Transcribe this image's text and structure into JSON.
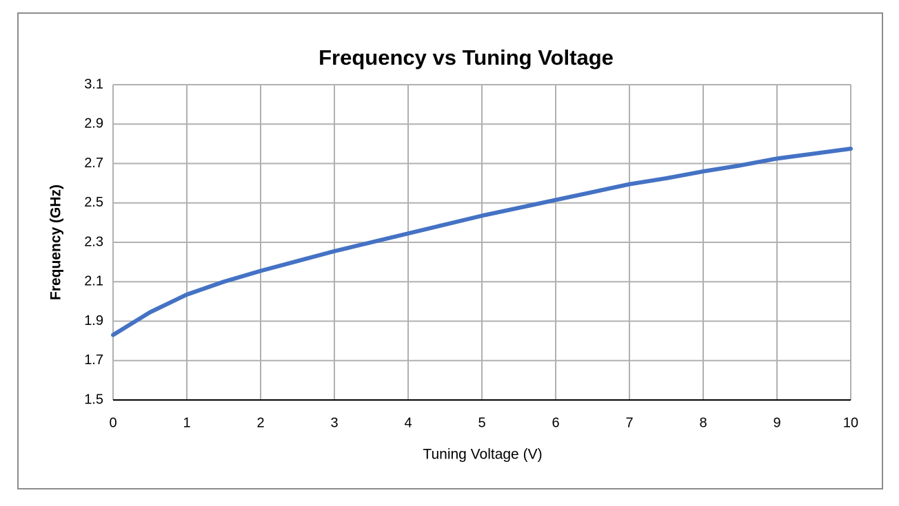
{
  "chart_data": {
    "type": "line",
    "title": "Frequency vs Tuning Voltage",
    "x_label": "Tuning Voltage (V)",
    "y_label": "Frequency (GHz)",
    "x": [
      0,
      0.5,
      1,
      1.5,
      2,
      2.5,
      3,
      3.5,
      4,
      4.5,
      5,
      5.5,
      6,
      6.5,
      7,
      7.5,
      8,
      8.5,
      9,
      9.5,
      10
    ],
    "series": [
      {
        "color": "#4472c4",
        "values": [
          1.83,
          1.945,
          2.035,
          2.1,
          2.155,
          2.205,
          2.255,
          2.3,
          2.345,
          2.39,
          2.435,
          2.475,
          2.515,
          2.555,
          2.595,
          2.625,
          2.66,
          2.69,
          2.725,
          2.75,
          2.775
        ]
      }
    ],
    "xlim": [
      0,
      10
    ],
    "xticks": [
      0,
      1,
      2,
      3,
      4,
      5,
      6,
      7,
      8,
      9,
      10
    ],
    "ylim": [
      1.5,
      3.1
    ],
    "yticks": [
      1.5,
      1.7,
      1.9,
      2.1,
      2.3,
      2.5,
      2.7,
      2.9,
      3.1
    ],
    "grid": true
  }
}
